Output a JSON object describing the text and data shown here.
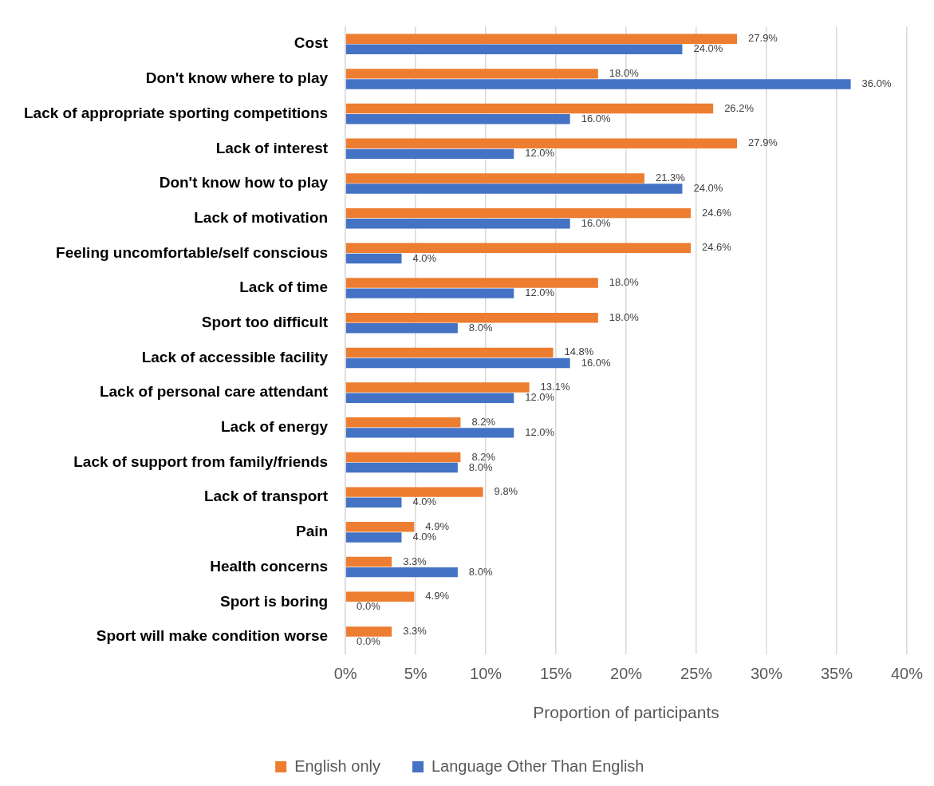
{
  "chart_data": {
    "type": "bar",
    "orientation": "horizontal",
    "xlabel": "Proportion of participants",
    "categories": [
      "Cost",
      "Don't know where to play",
      "Lack of appropriate sporting competitions",
      "Lack of interest",
      "Don't know how to play",
      "Lack of motivation",
      "Feeling uncomfortable/self conscious",
      "Lack of time",
      "Sport too difficult",
      "Lack of accessible facility",
      "Lack of personal care attendant",
      "Lack of energy",
      "Lack of support from family/friends",
      "Lack of transport",
      "Pain",
      "Health concerns",
      "Sport is boring",
      "Sport will make condition worse"
    ],
    "series": [
      {
        "name": "English only",
        "color": "#ed7d31",
        "values": [
          27.9,
          18.0,
          26.2,
          27.9,
          21.3,
          24.6,
          24.6,
          18.0,
          18.0,
          14.8,
          13.1,
          8.2,
          8.2,
          9.8,
          4.9,
          3.3,
          4.9,
          3.3
        ],
        "value_labels": [
          "27.9%",
          "18.0%",
          "26.2%",
          "27.9%",
          "21.3%",
          "24.6%",
          "24.6%",
          "18.0%",
          "18.0%",
          "14.8%",
          "13.1%",
          "8.2%",
          "8.2%",
          "9.8%",
          "4.9%",
          "3.3%",
          "4.9%",
          "3.3%"
        ]
      },
      {
        "name": "Language Other Than English",
        "color": "#4472c4",
        "values": [
          24.0,
          36.0,
          16.0,
          12.0,
          24.0,
          16.0,
          4.0,
          12.0,
          8.0,
          16.0,
          12.0,
          12.0,
          8.0,
          4.0,
          4.0,
          8.0,
          0.0,
          0.0
        ],
        "value_labels": [
          "24.0%",
          "36.0%",
          "16.0%",
          "12.0%",
          "24.0%",
          "16.0%",
          "4.0%",
          "12.0%",
          "8.0%",
          "16.0%",
          "12.0%",
          "12.0%",
          "8.0%",
          "4.0%",
          "4.0%",
          "8.0%",
          "0.0%",
          "0.0%"
        ]
      }
    ],
    "xlim": [
      0,
      40
    ],
    "xticks": [
      {
        "value": 0,
        "label": "0%"
      },
      {
        "value": 5,
        "label": "5%"
      },
      {
        "value": 10,
        "label": "10%"
      },
      {
        "value": 15,
        "label": "15%"
      },
      {
        "value": 20,
        "label": "20%"
      },
      {
        "value": 25,
        "label": "25%"
      },
      {
        "value": 30,
        "label": "30%"
      },
      {
        "value": 35,
        "label": "35%"
      },
      {
        "value": 40,
        "label": "40%"
      }
    ],
    "grid": "x",
    "legend": "bottom"
  }
}
